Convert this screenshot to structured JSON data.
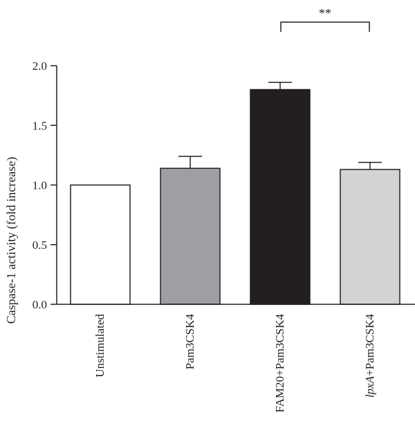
{
  "chart_data": {
    "type": "bar",
    "title": "",
    "xlabel": "",
    "ylabel": "Caspase-1 activity (fold increase)",
    "ylim": [
      0,
      2.0
    ],
    "yticks": [
      0.0,
      0.5,
      1.0,
      1.5,
      2.0
    ],
    "ytick_labels": [
      "0.0",
      "0.5",
      "1.0",
      "1.5",
      "2.0"
    ],
    "grid": false,
    "legend": "none",
    "categories": [
      "Unstimulated",
      "Pam3CSK4",
      "FAM20+Pam3CSK4",
      "lpxA+Pam3CSK4"
    ],
    "category_labels": [
      {
        "italic": "",
        "rest": "Unstimulated"
      },
      {
        "italic": "",
        "rest": "Pam3CSK4"
      },
      {
        "italic": "",
        "rest": "FAM20+Pam3CSK4"
      },
      {
        "italic": "lpxA",
        "rest": "+Pam3CSK4"
      }
    ],
    "values": [
      1.0,
      1.14,
      1.8,
      1.13
    ],
    "errors": [
      0,
      0.1,
      0.06,
      0.06
    ],
    "bar_colors": [
      "#ffffff",
      "#9d9fa2",
      "#231f20",
      "#d1d3d4"
    ],
    "significance": {
      "from": 2,
      "to": 3,
      "label": "**"
    }
  }
}
